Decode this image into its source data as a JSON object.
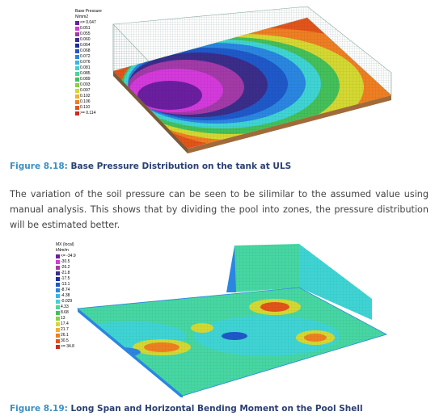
{
  "figure1": {
    "legend_title": [
      "Base Pressure",
      "N/mm2"
    ],
    "legend": [
      {
        "label": "<= 0.047",
        "color": "#6b1fa0"
      },
      {
        "label": "0.051",
        "color": "#d43adb"
      },
      {
        "label": "0.055",
        "color": "#a33aa8"
      },
      {
        "label": "0.060",
        "color": "#3b2d8a"
      },
      {
        "label": "0.064",
        "color": "#1c2e9c"
      },
      {
        "label": "0.068",
        "color": "#1f59c9"
      },
      {
        "label": "0.072",
        "color": "#2a86e0"
      },
      {
        "label": "0.076",
        "color": "#38b5e8"
      },
      {
        "label": "0.081",
        "color": "#3fd4d4"
      },
      {
        "label": "0.085",
        "color": "#46d7a3"
      },
      {
        "label": "0.089",
        "color": "#44c05a"
      },
      {
        "label": "0.093",
        "color": "#8ad13d"
      },
      {
        "label": "0.097",
        "color": "#d4d832"
      },
      {
        "label": "0.102",
        "color": "#f2b126"
      },
      {
        "label": "0.106",
        "color": "#ee7f22"
      },
      {
        "label": "0.110",
        "color": "#e2541b"
      },
      {
        "label": ">= 0.114",
        "color": "#cf2a1a"
      }
    ],
    "caption_number": "Figure 8.18:",
    "caption_text": "Base Pressure Distribution on the tank at ULS"
  },
  "paragraph": "The variation of the soil pressure can be seen to be silimilar to the assumed value using manual analysis. This shows that by dividing the pool into zones, the pressure distribution will be estimated better.",
  "figure2": {
    "legend_title": [
      "MX (local)",
      "kNm/m"
    ],
    "legend": [
      {
        "label": "<= -34.9",
        "color": "#6b1fa0"
      },
      {
        "label": "-30.5",
        "color": "#d43adb"
      },
      {
        "label": "-26.2",
        "color": "#a33aa8"
      },
      {
        "label": "-21.8",
        "color": "#3b2d8a"
      },
      {
        "label": "-17.5",
        "color": "#1c2e9c"
      },
      {
        "label": "-13.1",
        "color": "#1f59c9"
      },
      {
        "label": "-8.74",
        "color": "#2a86e0"
      },
      {
        "label": "-4.38",
        "color": "#38b5e8"
      },
      {
        "label": "-0.029",
        "color": "#3fd4d4"
      },
      {
        "label": "4.33",
        "color": "#46d7a3"
      },
      {
        "label": "8.68",
        "color": "#44c05a"
      },
      {
        "label": "13",
        "color": "#8ad13d"
      },
      {
        "label": "17.4",
        "color": "#d4d832"
      },
      {
        "label": "21.7",
        "color": "#f2b126"
      },
      {
        "label": "26.1",
        "color": "#ee7f22"
      },
      {
        "label": "30.5",
        "color": "#e2541b"
      },
      {
        "label": ">= 34.8",
        "color": "#cf2a1a"
      }
    ],
    "caption_number": "Figure 8.19:",
    "caption_text": "Long Span and Horizontal Bending Moment on the Pool Shell"
  }
}
